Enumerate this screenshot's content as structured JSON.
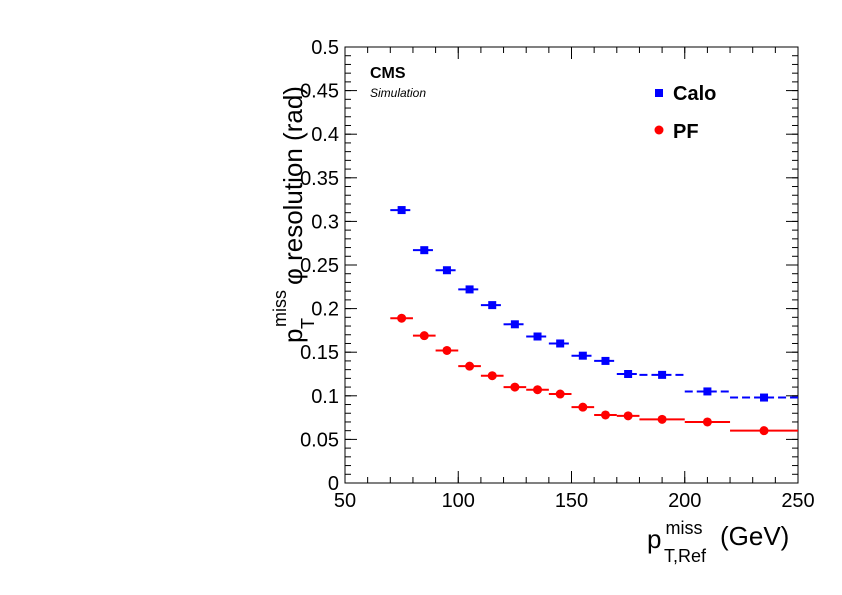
{
  "chart_data": {
    "type": "scatter",
    "title": "",
    "experiment": "CMS",
    "experiment_sub": "Simulation",
    "xlabel": {
      "main": "p",
      "sup": "miss",
      "sub": "T,Ref",
      "unit": "(GeV)"
    },
    "ylabel": {
      "main": "p",
      "sup": "miss",
      "sub": "T",
      "rest": "φ resolution (rad)"
    },
    "xlim": [
      50,
      250
    ],
    "ylim": [
      0,
      0.5
    ],
    "xticks": [
      "50",
      "100",
      "150",
      "200",
      "250"
    ],
    "yticks": [
      "0",
      "0.05",
      "0.1",
      "0.15",
      "0.2",
      "0.25",
      "0.3",
      "0.35",
      "0.4",
      "0.45",
      "0.5"
    ],
    "grid": false,
    "legend_position": "top-right",
    "series": [
      {
        "name": "Calo",
        "color": "#0000ff",
        "marker": "square",
        "line_style": "dashed",
        "points": [
          {
            "x": 75,
            "xlo": 70,
            "xhi": 80,
            "y": 0.313
          },
          {
            "x": 85,
            "xlo": 80,
            "xhi": 90,
            "y": 0.267
          },
          {
            "x": 95,
            "xlo": 90,
            "xhi": 100,
            "y": 0.244
          },
          {
            "x": 105,
            "xlo": 100,
            "xhi": 110,
            "y": 0.222
          },
          {
            "x": 115,
            "xlo": 110,
            "xhi": 120,
            "y": 0.204
          },
          {
            "x": 125,
            "xlo": 120,
            "xhi": 130,
            "y": 0.182
          },
          {
            "x": 135,
            "xlo": 130,
            "xhi": 140,
            "y": 0.168
          },
          {
            "x": 145,
            "xlo": 140,
            "xhi": 150,
            "y": 0.16
          },
          {
            "x": 155,
            "xlo": 150,
            "xhi": 160,
            "y": 0.146
          },
          {
            "x": 165,
            "xlo": 160,
            "xhi": 170,
            "y": 0.14
          },
          {
            "x": 175,
            "xlo": 170,
            "xhi": 180,
            "y": 0.125
          },
          {
            "x": 190,
            "xlo": 180,
            "xhi": 200,
            "y": 0.124
          },
          {
            "x": 210,
            "xlo": 200,
            "xhi": 220,
            "y": 0.105
          },
          {
            "x": 235,
            "xlo": 220,
            "xhi": 250,
            "y": 0.098
          }
        ]
      },
      {
        "name": "PF",
        "color": "#ff0000",
        "marker": "circle",
        "line_style": "solid",
        "points": [
          {
            "x": 75,
            "xlo": 70,
            "xhi": 80,
            "y": 0.189
          },
          {
            "x": 85,
            "xlo": 80,
            "xhi": 90,
            "y": 0.169
          },
          {
            "x": 95,
            "xlo": 90,
            "xhi": 100,
            "y": 0.152
          },
          {
            "x": 105,
            "xlo": 100,
            "xhi": 110,
            "y": 0.134
          },
          {
            "x": 115,
            "xlo": 110,
            "xhi": 120,
            "y": 0.123
          },
          {
            "x": 125,
            "xlo": 120,
            "xhi": 130,
            "y": 0.11
          },
          {
            "x": 135,
            "xlo": 130,
            "xhi": 140,
            "y": 0.107
          },
          {
            "x": 145,
            "xlo": 140,
            "xhi": 150,
            "y": 0.102
          },
          {
            "x": 155,
            "xlo": 150,
            "xhi": 160,
            "y": 0.087
          },
          {
            "x": 165,
            "xlo": 160,
            "xhi": 170,
            "y": 0.078
          },
          {
            "x": 175,
            "xlo": 170,
            "xhi": 180,
            "y": 0.077
          },
          {
            "x": 190,
            "xlo": 180,
            "xhi": 200,
            "y": 0.073
          },
          {
            "x": 210,
            "xlo": 200,
            "xhi": 220,
            "y": 0.07
          },
          {
            "x": 235,
            "xlo": 220,
            "xhi": 250,
            "y": 0.06
          }
        ]
      }
    ]
  }
}
